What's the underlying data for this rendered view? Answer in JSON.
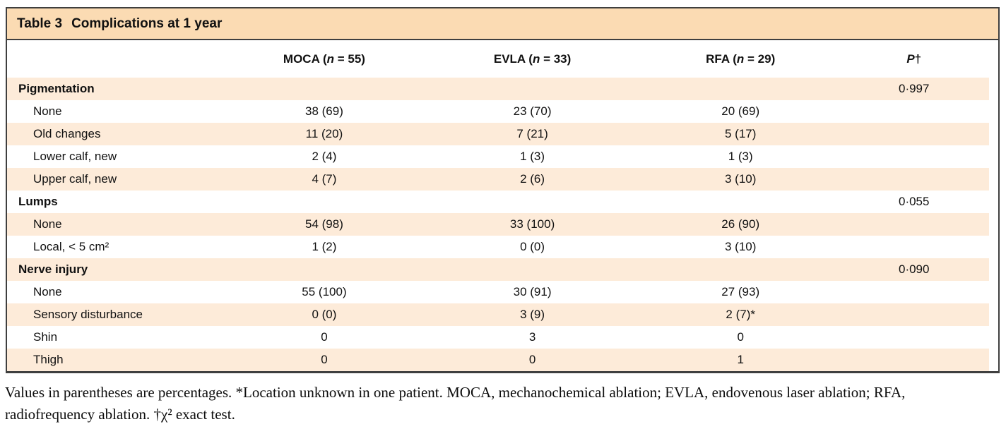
{
  "colors": {
    "title_band": "#FBDBB3",
    "row_band": "#FDEBD9",
    "border": "#3F3F3F",
    "text": "#111111"
  },
  "table": {
    "title_label": "Table 3",
    "title_text": "Complications at 1 year",
    "columns": [
      {
        "pre": "MOCA (",
        "italic": "n",
        "post": " = 55)"
      },
      {
        "pre": "EVLA (",
        "italic": "n",
        "post": " = 33)"
      },
      {
        "pre": "RFA (",
        "italic": "n",
        "post": " = 29)"
      },
      {
        "pre": "",
        "italic": "P",
        "post": "†"
      }
    ],
    "rows": [
      {
        "label": "Pigmentation",
        "bold": true,
        "indent": false,
        "values": [
          "",
          "",
          "",
          "0·997"
        ]
      },
      {
        "label": "None",
        "bold": false,
        "indent": true,
        "values": [
          "38 (69)",
          "23 (70)",
          "20 (69)",
          ""
        ]
      },
      {
        "label": "Old changes",
        "bold": false,
        "indent": true,
        "values": [
          "11 (20)",
          "7 (21)",
          "5 (17)",
          ""
        ]
      },
      {
        "label": "Lower calf, new",
        "bold": false,
        "indent": true,
        "values": [
          "2 (4)",
          "1 (3)",
          "1 (3)",
          ""
        ]
      },
      {
        "label": "Upper calf, new",
        "bold": false,
        "indent": true,
        "values": [
          "4 (7)",
          "2 (6)",
          "3 (10)",
          ""
        ]
      },
      {
        "label": "Lumps",
        "bold": true,
        "indent": false,
        "values": [
          "",
          "",
          "",
          "0·055"
        ]
      },
      {
        "label": "None",
        "bold": false,
        "indent": true,
        "values": [
          "54 (98)",
          "33 (100)",
          "26 (90)",
          ""
        ]
      },
      {
        "label": "Local, < 5 cm²",
        "bold": false,
        "indent": true,
        "values": [
          "1 (2)",
          "0 (0)",
          "3 (10)",
          ""
        ]
      },
      {
        "label": "Nerve injury",
        "bold": true,
        "indent": false,
        "values": [
          "",
          "",
          "",
          "0·090"
        ]
      },
      {
        "label": "None",
        "bold": false,
        "indent": true,
        "values": [
          "55 (100)",
          "30 (91)",
          "27 (93)",
          ""
        ]
      },
      {
        "label": "Sensory disturbance",
        "bold": false,
        "indent": true,
        "values": [
          "0 (0)",
          "3 (9)",
          "2 (7)*",
          ""
        ]
      },
      {
        "label": "Shin",
        "bold": false,
        "indent": true,
        "values": [
          "0",
          "3",
          "0",
          ""
        ]
      },
      {
        "label": "Thigh",
        "bold": false,
        "indent": true,
        "values": [
          "0",
          "0",
          "1",
          ""
        ]
      }
    ]
  },
  "footnote": {
    "line1": "Values in parentheses are percentages. *Location unknown in one patient. MOCA, mechanochemical ablation; EVLA, endovenous laser ablation; RFA,",
    "line2": "radiofrequency ablation. †χ² exact test."
  }
}
